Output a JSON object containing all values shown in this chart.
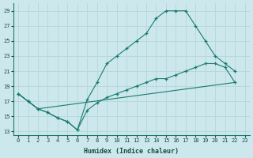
{
  "xlabel": "Humidex (Indice chaleur)",
  "background_color": "#cce8ed",
  "grid_color": "#b8d8de",
  "line_color": "#1a7a6e",
  "xlim": [
    -0.5,
    23.5
  ],
  "ylim": [
    12.5,
    30
  ],
  "yticks": [
    13,
    15,
    17,
    19,
    21,
    23,
    25,
    27,
    29
  ],
  "xticks": [
    0,
    1,
    2,
    3,
    4,
    5,
    6,
    7,
    8,
    9,
    10,
    11,
    12,
    13,
    14,
    15,
    16,
    17,
    18,
    19,
    20,
    21,
    22,
    23
  ],
  "line1_x": [
    0,
    1,
    2,
    3,
    4,
    5,
    6,
    7,
    8,
    9,
    10,
    11,
    12,
    13,
    14,
    15,
    16,
    17,
    18,
    19,
    20,
    21,
    22
  ],
  "line1_y": [
    18,
    17,
    16,
    15.5,
    14.8,
    14.3,
    13.2,
    17.2,
    19.5,
    22,
    23,
    24,
    25,
    26,
    28,
    29,
    29,
    29,
    27,
    25,
    23,
    22,
    21
  ],
  "line2_x": [
    0,
    1,
    2,
    22
  ],
  "line2_y": [
    18,
    17,
    16,
    19.5
  ],
  "line3_x": [
    0,
    1,
    2,
    3,
    4,
    5,
    6,
    7,
    8,
    9,
    10,
    11,
    12,
    13,
    14,
    15,
    16,
    17,
    18,
    19,
    20,
    21,
    22
  ],
  "line3_y": [
    18,
    17,
    16,
    15.5,
    14.8,
    14.3,
    13.2,
    15.8,
    16.8,
    17.5,
    18,
    18.5,
    19,
    19.5,
    20,
    20,
    20.5,
    21,
    21.5,
    22,
    22,
    21.5,
    19.5
  ]
}
